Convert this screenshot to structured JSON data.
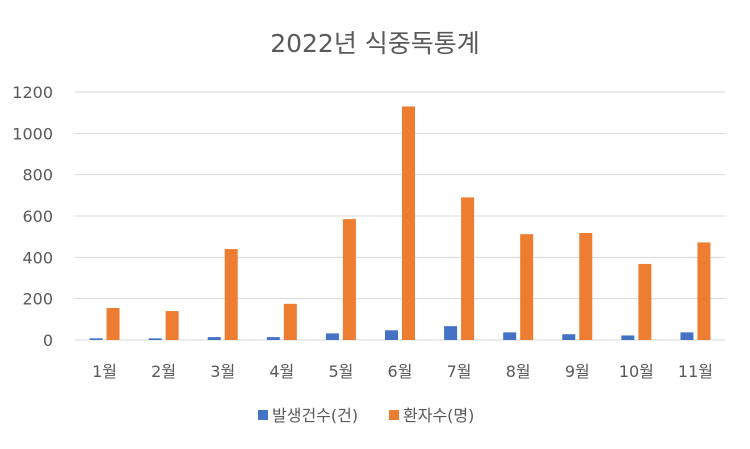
{
  "chart_data": {
    "type": "bar",
    "title": "2022년 식중독통계",
    "xlabel": "",
    "ylabel": "",
    "categories": [
      "1월",
      "2월",
      "3월",
      "4월",
      "5월",
      "6월",
      "7월",
      "8월",
      "9월",
      "10월",
      "11월"
    ],
    "series": [
      {
        "name": "발생건수(건)",
        "color": "#4472C4",
        "values": [
          8,
          8,
          14,
          14,
          32,
          47,
          67,
          37,
          28,
          22,
          37
        ]
      },
      {
        "name": "환자수(명)",
        "color": "#ED7D31",
        "values": [
          155,
          140,
          440,
          175,
          585,
          1130,
          690,
          512,
          518,
          368,
          472
        ]
      }
    ],
    "ylim": [
      0,
      1200
    ],
    "yticks": [
      0,
      200,
      400,
      600,
      800,
      1000,
      1200
    ],
    "grid": true,
    "legend_position": "bottom",
    "colors": {
      "gridline": "#D9D9D9",
      "text": "#595959"
    }
  }
}
